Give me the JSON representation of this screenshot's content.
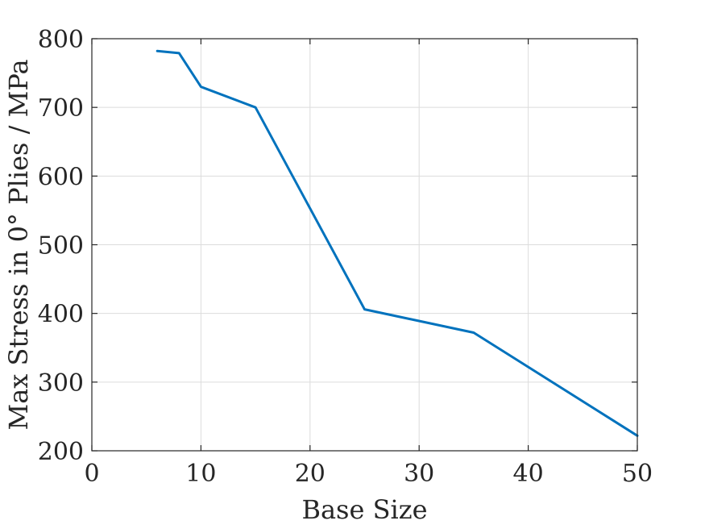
{
  "chart_data": {
    "type": "line",
    "title": "",
    "xlabel": "Base Size",
    "ylabel": "Max Stress in 0° Plies / MPa",
    "xlim": [
      0,
      50
    ],
    "ylim": [
      200,
      800
    ],
    "xticks": [
      0,
      10,
      20,
      30,
      40,
      50
    ],
    "yticks": [
      200,
      300,
      400,
      500,
      600,
      700,
      800
    ],
    "xtick_labels": [
      "0",
      "10",
      "20",
      "30",
      "40",
      "50"
    ],
    "ytick_labels": [
      "200",
      "300",
      "400",
      "500",
      "600",
      "700",
      "800"
    ],
    "grid": true,
    "series": [
      {
        "color": "#0072bd",
        "x": [
          6,
          8,
          10,
          15,
          25,
          35,
          50
        ],
        "y": [
          782,
          779,
          730,
          700,
          406,
          372,
          222
        ]
      }
    ]
  }
}
